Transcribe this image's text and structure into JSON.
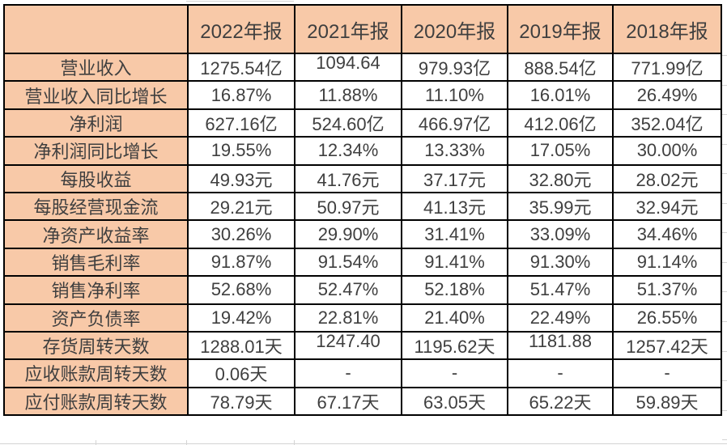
{
  "colors": {
    "header_bg": "#F8C9A8",
    "cell_bg": "#FFFFFF",
    "text": "#3F3F3F",
    "table_border": "#000000",
    "gridline": "#D4D4D4"
  },
  "table": {
    "corner_label": "",
    "year_headers": [
      "2022年报",
      "2021年报",
      "2020年报",
      "2019年报",
      "2018年报"
    ],
    "rows": [
      {
        "label": "营业收入",
        "values": [
          "1275.54亿",
          "1094.64",
          "979.93亿",
          "888.54亿",
          "771.99亿"
        ]
      },
      {
        "label": "营业收入同比增长",
        "values": [
          "16.87%",
          "11.88%",
          "11.10%",
          "16.01%",
          "26.49%"
        ]
      },
      {
        "label": "净利润",
        "values": [
          "627.16亿",
          "524.60亿",
          "466.97亿",
          "412.06亿",
          "352.04亿"
        ]
      },
      {
        "label": "净利润同比增长",
        "values": [
          "19.55%",
          "12.34%",
          "13.33%",
          "17.05%",
          "30.00%"
        ]
      },
      {
        "label": "每股收益",
        "values": [
          "49.93元",
          "41.76元",
          "37.17元",
          "32.80元",
          "28.02元"
        ]
      },
      {
        "label": "每股经营现金流",
        "values": [
          "29.21元",
          "50.97元",
          "41.13元",
          "35.99元",
          "32.94元"
        ]
      },
      {
        "label": "净资产收益率",
        "values": [
          "30.26%",
          "29.90%",
          "31.41%",
          "33.09%",
          "34.46%"
        ]
      },
      {
        "label": "销售毛利率",
        "values": [
          "91.87%",
          "91.54%",
          "91.41%",
          "91.30%",
          "91.14%"
        ]
      },
      {
        "label": "销售净利率",
        "values": [
          "52.68%",
          "52.47%",
          "52.18%",
          "51.47%",
          "51.37%"
        ]
      },
      {
        "label": "资产负债率",
        "values": [
          "19.42%",
          "22.81%",
          "21.40%",
          "22.49%",
          "26.55%"
        ]
      },
      {
        "label": "存货周转天数",
        "values": [
          "1288.01天",
          "1247.40",
          "1195.62天",
          "1181.88",
          "1257.42天"
        ]
      },
      {
        "label": "应收账款周转天数",
        "values": [
          "0.06天",
          "-",
          "-",
          "-",
          "-"
        ]
      },
      {
        "label": "应付账款周转天数",
        "values": [
          "78.79天",
          "67.17天",
          "63.05天",
          "65.22天",
          "59.89天"
        ]
      }
    ],
    "raised_cells": [
      [
        0,
        1
      ],
      [
        10,
        1
      ],
      [
        10,
        3
      ]
    ]
  }
}
